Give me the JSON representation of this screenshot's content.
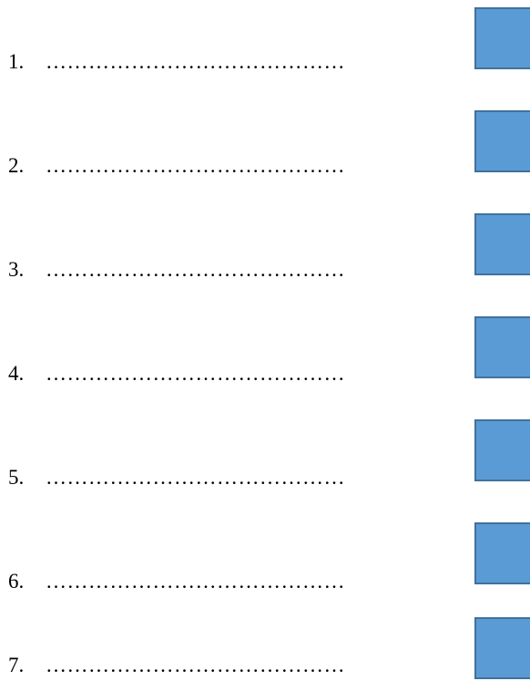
{
  "items": [
    {
      "number": "1.",
      "blank": "……………………………………"
    },
    {
      "number": "2.",
      "blank": "……………………………………"
    },
    {
      "number": "3.",
      "blank": "……………………………………"
    },
    {
      "number": "4.",
      "blank": "……………………………………"
    },
    {
      "number": "5.",
      "blank": "……………………………………"
    },
    {
      "number": "6.",
      "blank": "……………………………………"
    },
    {
      "number": "7.",
      "blank": "……………………………………"
    }
  ],
  "colors": {
    "box_fill": "#5b9bd5",
    "box_border": "#41719c"
  }
}
